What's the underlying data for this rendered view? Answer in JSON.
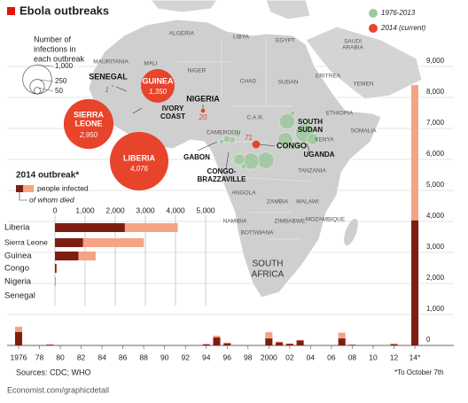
{
  "header": {
    "title": "Ebola outbreaks"
  },
  "legend": {
    "items": [
      {
        "label": "1976-2013",
        "color": "#9fc79d"
      },
      {
        "label": "2014 (current)",
        "color": "#e8432b"
      }
    ]
  },
  "size_legend": {
    "title": [
      "Number of",
      "infections in",
      "each outbreak"
    ],
    "sizes": [
      {
        "value": 1000,
        "label": "1,000"
      },
      250,
      50
    ]
  },
  "map": {
    "countries": [
      [
        "ALGERIA"
      ],
      [
        "LIBYA"
      ],
      [
        "EGYPT"
      ],
      [
        "SAUDI",
        "ARABIA"
      ],
      [
        "YEMEN"
      ],
      [
        "MAURITANIA"
      ],
      [
        "MALI"
      ],
      [
        "NIGER"
      ],
      [
        "CHAD"
      ],
      [
        "SUDAN"
      ],
      [
        "ERITREA"
      ],
      [
        "ETHIOPIA"
      ],
      [
        "SOMALIA"
      ],
      [
        "C.A.R."
      ],
      [
        "CAMEROON"
      ],
      [
        "KENYA"
      ],
      [
        "TANZANIA"
      ],
      [
        "ANGOLA"
      ],
      [
        "ZAMBIA"
      ],
      [
        "MALAWI"
      ],
      [
        "NAMIBIA"
      ],
      [
        "ZIMBABWE"
      ],
      [
        "BOTSWANA"
      ],
      [
        "MOZAMBIQUE"
      ]
    ],
    "outbreak_countries": [
      [
        "IVORY",
        "COAST"
      ],
      [
        "GABON"
      ],
      [
        "CONGO-",
        "BRAZZAVILLE"
      ],
      [
        "SOUTH",
        "SUDAN"
      ],
      [
        "UGANDA"
      ],
      [
        "SOUTH",
        "AFRICA"
      ]
    ],
    "bubbles": {
      "names": [
        [
          "GUINEA"
        ],
        [
          "SIERRA",
          "LEONE"
        ],
        [
          "LIBERIA"
        ],
        [
          "NIGERIA"
        ],
        [
          "SENEGAL"
        ],
        [
          "CONGO"
        ]
      ],
      "values": [
        1350,
        2950,
        4076,
        20,
        1,
        71
      ],
      "value_labels": [
        "1,350",
        "2,950",
        "4,076",
        "20",
        "1",
        "71"
      ]
    },
    "historical": {
      "values": [
        318,
        315,
        284,
        425,
        264,
        149,
        143,
        52,
        60,
        37,
        31,
        34,
        35,
        57
      ]
    }
  },
  "chart_data": [
    {
      "type": "hbar",
      "title": "2014 outbreak*",
      "categories": [
        "Liberia",
        "Sierra Leone",
        "Guinea",
        "Congo",
        "Nigeria",
        "Senegal"
      ],
      "series": [
        {
          "name": "people infected",
          "color": "#f4a482",
          "values": [
            4076,
            2950,
            1350,
            71,
            20,
            1
          ]
        },
        {
          "name": "of whom died",
          "color": "#7e1e12",
          "values": [
            2316,
            930,
            778,
            43,
            8,
            0
          ]
        }
      ],
      "xlim": [
        0,
        5000
      ],
      "xticks": [
        0,
        {
          "value": 1000,
          "label": "1,000"
        },
        {
          "value": 2000,
          "label": "2,000"
        },
        {
          "value": 3000,
          "label": "3,000"
        },
        {
          "value": 4000,
          "label": "4,000"
        },
        {
          "value": 5000,
          "label": "5,000"
        }
      ],
      "grid": true
    },
    {
      "type": "bar",
      "x": [
        1976,
        1977,
        1979,
        1994,
        1995,
        1996,
        2000,
        2001,
        2002,
        2003,
        2004,
        2005,
        2007,
        2008,
        2011,
        2012,
        2014
      ],
      "series": [
        {
          "color": "#f4a482",
          "values": [
            602,
            1,
            34,
            52,
            315,
            91,
            425,
            122,
            60,
            178,
            17,
            12,
            413,
            32,
            1,
            62,
            8400
          ]
        },
        {
          "color": "#7e1e12",
          "values": [
            431,
            1,
            22,
            31,
            254,
            66,
            224,
            96,
            51,
            157,
            7,
            10,
            224,
            15,
            1,
            34,
            4030
          ]
        }
      ],
      "xlim": [
        1975,
        2015
      ],
      "xticks": [
        1976,
        {
          "value": 1978,
          "label": "78"
        },
        {
          "value": 1980,
          "label": "80"
        },
        {
          "value": 1982,
          "label": "82"
        },
        {
          "value": 1984,
          "label": "84"
        },
        {
          "value": 1986,
          "label": "86"
        },
        {
          "value": 1988,
          "label": "88"
        },
        {
          "value": 1990,
          "label": "90"
        },
        {
          "value": 1992,
          "label": "92"
        },
        {
          "value": 1994,
          "label": "94"
        },
        {
          "value": 1996,
          "label": "96"
        },
        {
          "value": 1998,
          "label": "98"
        },
        2000,
        {
          "value": 2002,
          "label": "02"
        },
        {
          "value": 2004,
          "label": "04"
        },
        {
          "value": 2006,
          "label": "06"
        },
        {
          "value": 2008,
          "label": "08"
        },
        {
          "value": 2010,
          "label": "10"
        },
        {
          "value": 2012,
          "label": "12"
        },
        {
          "value": 2014,
          "label": "14*"
        }
      ],
      "ylim": [
        0,
        9000
      ],
      "yticks": [
        0,
        {
          "value": 1000,
          "label": "1,000"
        },
        {
          "value": 2000,
          "label": "2,000"
        },
        {
          "value": 3000,
          "label": "3,000"
        },
        {
          "value": 4000,
          "label": "4,000"
        },
        {
          "value": 5000,
          "label": "5,000"
        },
        {
          "value": 6000,
          "label": "6,000"
        },
        {
          "value": 7000,
          "label": "7,000"
        },
        {
          "value": 8000,
          "label": "8,000"
        },
        {
          "value": 9000,
          "label": "9,000"
        }
      ],
      "grid": true
    }
  ],
  "footer": {
    "source": "Sources: CDC; WHO",
    "credit": "Economist.com/graphicdetail",
    "note": "*To October 7th"
  }
}
